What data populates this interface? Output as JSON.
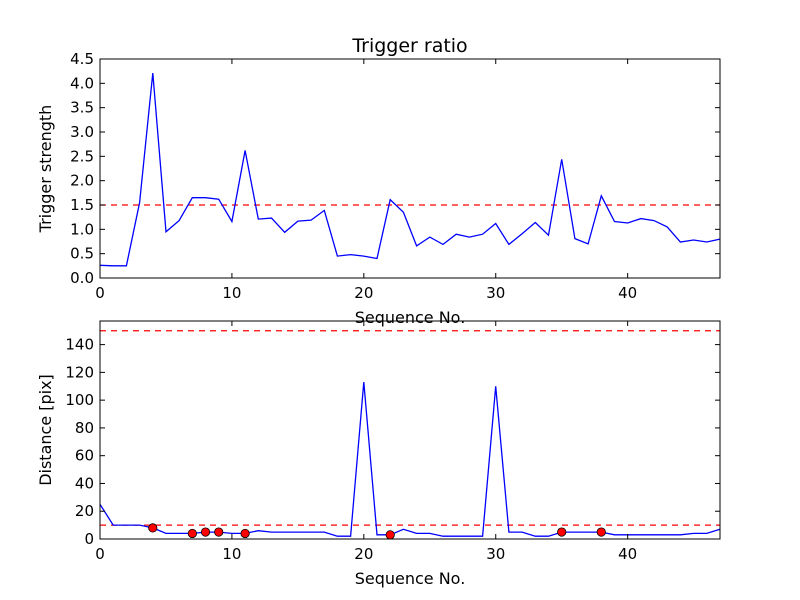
{
  "chart_data": [
    {
      "type": "line",
      "title": "Trigger ratio",
      "xlabel": "Sequence No.",
      "ylabel": "Trigger strength",
      "xlim": [
        0,
        47
      ],
      "ylim": [
        0,
        4.5
      ],
      "xticks": [
        "0",
        "10",
        "20",
        "30",
        "40"
      ],
      "yticks": [
        "0.0",
        "0.5",
        "1.0",
        "1.5",
        "2.0",
        "2.5",
        "3.0",
        "3.5",
        "4.0",
        "4.5"
      ],
      "grid": false,
      "line_color": "#0000ff",
      "threshold_color": "#ff0000",
      "thresholds": [
        1.5
      ],
      "series": [
        {
          "x": [
            0,
            1,
            2,
            3,
            4,
            5,
            6,
            7,
            8,
            9,
            10,
            11,
            12,
            13,
            14,
            15,
            16,
            17,
            18,
            19,
            20,
            21,
            22,
            23,
            24,
            25,
            26,
            27,
            28,
            29,
            30,
            31,
            32,
            33,
            34,
            35,
            36,
            37,
            38,
            39,
            40,
            41,
            42,
            43,
            44,
            45,
            46,
            47
          ],
          "values": [
            0.26,
            0.25,
            0.25,
            1.55,
            4.21,
            0.95,
            1.18,
            1.65,
            1.65,
            1.62,
            1.16,
            2.62,
            1.21,
            1.23,
            0.94,
            1.17,
            1.19,
            1.39,
            0.45,
            0.48,
            0.45,
            0.4,
            1.61,
            1.35,
            0.66,
            0.84,
            0.69,
            0.9,
            0.84,
            0.9,
            1.12,
            0.69,
            0.91,
            1.14,
            0.88,
            2.44,
            0.81,
            0.7,
            1.69,
            1.16,
            1.13,
            1.22,
            1.18,
            1.05,
            0.74,
            0.78,
            0.74,
            0.8
          ]
        }
      ]
    },
    {
      "type": "line",
      "title": "",
      "xlabel": "Sequence No.",
      "ylabel": "Distance [pix]",
      "xlim": [
        0,
        47
      ],
      "ylim": [
        0,
        157
      ],
      "xticks": [
        "0",
        "10",
        "20",
        "30",
        "40"
      ],
      "yticks": [
        "0",
        "20",
        "40",
        "60",
        "80",
        "100",
        "120",
        "140"
      ],
      "grid": false,
      "line_color": "#0000ff",
      "marker_color": "#ff0000",
      "threshold_color": "#ff0000",
      "thresholds": [
        10,
        150
      ],
      "series": [
        {
          "x": [
            0,
            1,
            2,
            3,
            4,
            5,
            6,
            7,
            8,
            9,
            10,
            11,
            12,
            13,
            14,
            15,
            16,
            17,
            18,
            19,
            20,
            21,
            22,
            23,
            24,
            25,
            26,
            27,
            28,
            29,
            30,
            31,
            32,
            33,
            34,
            35,
            36,
            37,
            38,
            39,
            40,
            41,
            42,
            43,
            44,
            45,
            46,
            47
          ],
          "values": [
            25,
            10,
            10,
            10,
            8,
            4,
            4,
            4,
            5,
            5,
            4,
            4,
            6,
            5,
            5,
            5,
            5,
            5,
            2,
            2,
            113,
            3,
            3,
            7,
            4,
            4,
            2,
            2,
            2,
            2,
            110,
            5,
            5,
            2,
            2,
            5,
            5,
            5,
            5,
            3,
            3,
            3,
            3,
            3,
            3,
            4,
            4,
            7
          ]
        }
      ],
      "markers": [
        {
          "x": 4,
          "y": 8
        },
        {
          "x": 7,
          "y": 4
        },
        {
          "x": 8,
          "y": 5
        },
        {
          "x": 9,
          "y": 5
        },
        {
          "x": 11,
          "y": 4
        },
        {
          "x": 22,
          "y": 3
        },
        {
          "x": 35,
          "y": 5
        },
        {
          "x": 38,
          "y": 5
        }
      ]
    }
  ]
}
